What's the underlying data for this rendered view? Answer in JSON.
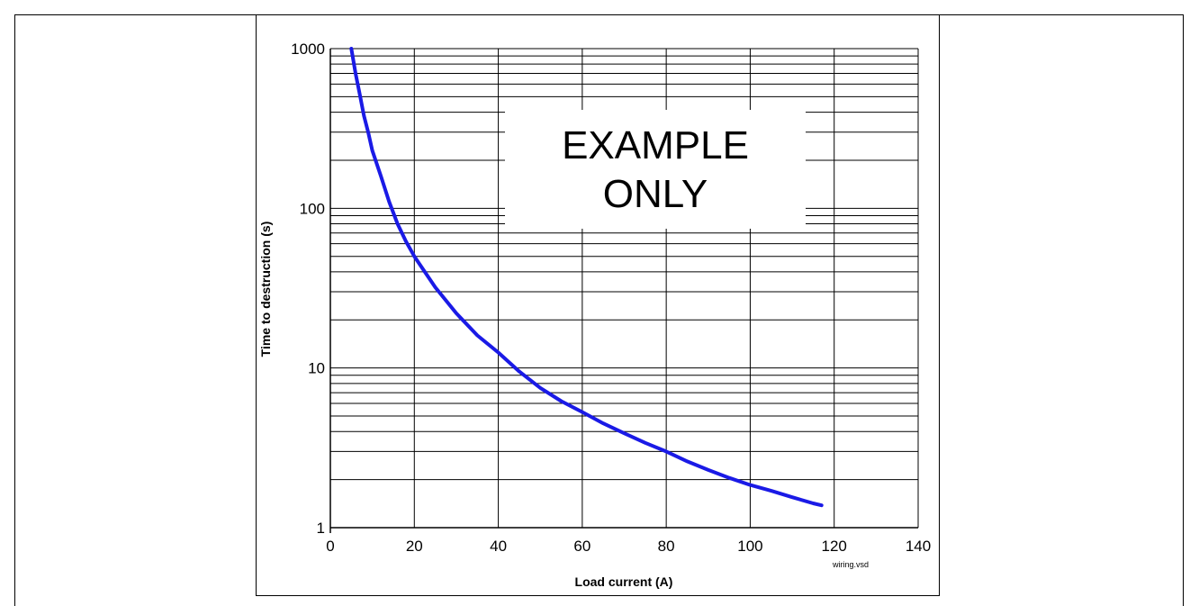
{
  "chart_data": {
    "type": "line",
    "xlabel": "Load current (A)",
    "ylabel": "Time to destruction (s)",
    "x_ticks": [
      0,
      20,
      40,
      60,
      80,
      100,
      120,
      140
    ],
    "y_ticks": [
      1,
      10,
      100,
      1000
    ],
    "xlim": [
      0,
      140
    ],
    "ylim": [
      1,
      1000
    ],
    "y_scale": "log",
    "grid": true,
    "annotation_lines": [
      "EXAMPLE",
      "ONLY"
    ],
    "footnote": "wiring.vsd",
    "line_color": "#1a1ae6",
    "series": [
      {
        "x": [
          5,
          6,
          7,
          8,
          9,
          10,
          12,
          14,
          16,
          18,
          20,
          25,
          30,
          35,
          40,
          45,
          50,
          55,
          60,
          65,
          70,
          75,
          80,
          85,
          90,
          95,
          100,
          105,
          110,
          115,
          117
        ],
        "values": [
          1000,
          700,
          520,
          380,
          300,
          230,
          160,
          110,
          80,
          62,
          50,
          32,
          22,
          16,
          12.5,
          9.5,
          7.5,
          6.2,
          5.3,
          4.5,
          3.9,
          3.4,
          3.0,
          2.6,
          2.3,
          2.05,
          1.85,
          1.7,
          1.55,
          1.42,
          1.38
        ]
      }
    ]
  }
}
